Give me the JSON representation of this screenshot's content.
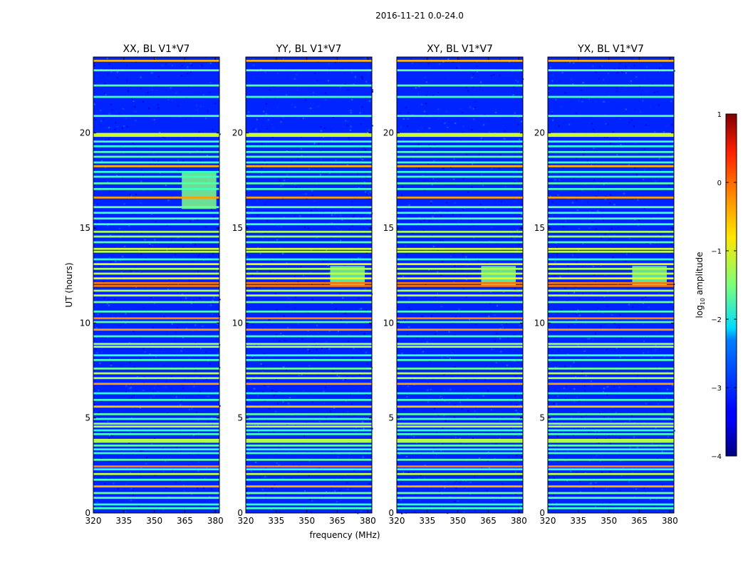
{
  "figure": {
    "suptitle": "2016-11-21 0.0-24.0"
  },
  "chart_data": {
    "type": "heatmap",
    "ylabel": "UT (hours)",
    "xlabel": "frequency (MHz)",
    "xlim": [
      320,
      382
    ],
    "ylim": [
      0,
      24
    ],
    "x_ticks": [
      320,
      335,
      350,
      365,
      380
    ],
    "y_ticks": [
      0,
      5,
      10,
      15,
      20
    ],
    "colormap": "jet",
    "colorbar": {
      "label_prefix": "log",
      "label_sub": "10",
      "label_suffix": " amplitude",
      "range": [
        -4,
        1
      ],
      "ticks": [
        1,
        0,
        -1,
        -2,
        -3,
        -4
      ],
      "tick_labels": [
        "1",
        "0",
        "−1",
        "−2",
        "−3",
        "−4"
      ]
    },
    "panels": [
      {
        "title": "XX, BL V1*V7",
        "band": [
          363.5,
          380.5
        ],
        "midday_boost": [
          16,
          18
        ]
      },
      {
        "title": "YY, BL V1*V7",
        "band": [
          361.5,
          378.5
        ],
        "midday_boost": [
          12,
          13
        ]
      },
      {
        "title": "XY, BL V1*V7",
        "band": [
          361.5,
          378.5
        ],
        "midday_boost": [
          12,
          13
        ]
      },
      {
        "title": "YX, BL V1*V7",
        "band": [
          361.5,
          378.5
        ],
        "midday_boost": [
          12,
          13
        ]
      }
    ],
    "background_level": -3.2,
    "band_level": -2.1,
    "rfi_rows": [
      {
        "t": 0.25,
        "v": -1.8
      },
      {
        "t": 0.45,
        "v": -1.9
      },
      {
        "t": 0.8,
        "v": -1.7
      },
      {
        "t": 1.05,
        "v": -1.6
      },
      {
        "t": 1.4,
        "v": -0.5
      },
      {
        "t": 1.75,
        "v": -1.8
      },
      {
        "t": 2.05,
        "v": -1.2
      },
      {
        "t": 2.3,
        "v": -1.9
      },
      {
        "t": 2.45,
        "v": -0.3
      },
      {
        "t": 2.8,
        "v": -1.7
      },
      {
        "t": 3.15,
        "v": -1.8
      },
      {
        "t": 3.35,
        "v": -1.9
      },
      {
        "t": 3.55,
        "v": -1.7
      },
      {
        "t": 3.75,
        "v": -1.3
      },
      {
        "t": 3.85,
        "v": -1.2
      },
      {
        "t": 4.15,
        "v": -1.8
      },
      {
        "t": 4.35,
        "v": -1.9
      },
      {
        "t": 4.55,
        "v": -1.2
      },
      {
        "t": 4.7,
        "v": -1.4
      },
      {
        "t": 4.95,
        "v": -1.8
      },
      {
        "t": 5.2,
        "v": -1.7
      },
      {
        "t": 5.6,
        "v": -0.6
      },
      {
        "t": 5.95,
        "v": -1.8
      },
      {
        "t": 6.3,
        "v": -1.9
      },
      {
        "t": 6.8,
        "v": -0.4
      },
      {
        "t": 7.1,
        "v": -1.3
      },
      {
        "t": 7.35,
        "v": -1.2
      },
      {
        "t": 7.6,
        "v": -1.6
      },
      {
        "t": 8.05,
        "v": -1.8
      },
      {
        "t": 8.3,
        "v": -1.9
      },
      {
        "t": 8.75,
        "v": -1.3
      },
      {
        "t": 8.9,
        "v": -1.4
      },
      {
        "t": 9.3,
        "v": -1.8
      },
      {
        "t": 9.65,
        "v": -0.4
      },
      {
        "t": 10.05,
        "v": -1.7
      },
      {
        "t": 10.25,
        "v": -0.3
      },
      {
        "t": 10.6,
        "v": -1.8
      },
      {
        "t": 11.1,
        "v": -1.6
      },
      {
        "t": 11.45,
        "v": -1.2
      },
      {
        "t": 11.7,
        "v": -1.3
      },
      {
        "t": 11.95,
        "v": -0.2
      },
      {
        "t": 12.1,
        "v": -0.2
      },
      {
        "t": 12.35,
        "v": -1.0
      },
      {
        "t": 12.6,
        "v": -1.2
      },
      {
        "t": 12.85,
        "v": -1.3
      },
      {
        "t": 13.1,
        "v": -1.0
      },
      {
        "t": 13.35,
        "v": -1.9
      },
      {
        "t": 13.75,
        "v": -1.2
      },
      {
        "t": 13.9,
        "v": -1.1
      },
      {
        "t": 14.25,
        "v": -1.7
      },
      {
        "t": 14.55,
        "v": -1.4
      },
      {
        "t": 14.8,
        "v": -1.3
      },
      {
        "t": 15.2,
        "v": -1.8
      },
      {
        "t": 15.5,
        "v": -1.7
      },
      {
        "t": 15.8,
        "v": -1.8
      },
      {
        "t": 16.1,
        "v": -1.6
      },
      {
        "t": 16.6,
        "v": -0.4
      },
      {
        "t": 17.05,
        "v": -1.8
      },
      {
        "t": 17.35,
        "v": -1.7
      },
      {
        "t": 17.7,
        "v": -1.8
      },
      {
        "t": 17.95,
        "v": -1.9
      },
      {
        "t": 18.25,
        "v": -0.5
      },
      {
        "t": 18.45,
        "v": -1.8
      },
      {
        "t": 18.75,
        "v": -1.7
      },
      {
        "t": 19.0,
        "v": -1.8
      },
      {
        "t": 19.3,
        "v": -1.9
      },
      {
        "t": 19.55,
        "v": -1.8
      },
      {
        "t": 19.85,
        "v": -1.1
      },
      {
        "t": 19.95,
        "v": -1.1
      },
      {
        "t": 20.9,
        "v": -1.7
      },
      {
        "t": 21.9,
        "v": -1.8
      },
      {
        "t": 22.5,
        "v": -1.7
      },
      {
        "t": 23.3,
        "v": -1.6
      },
      {
        "t": 23.8,
        "v": -0.5
      }
    ]
  }
}
